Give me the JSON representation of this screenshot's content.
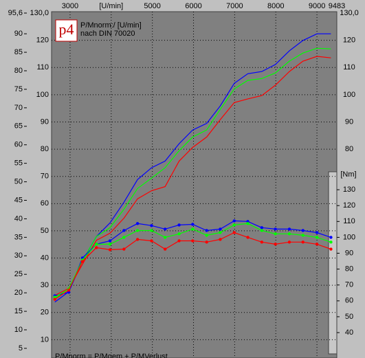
{
  "chart_data": {
    "type": "line",
    "title": "P/Mnorm:/ [U/min]",
    "subtitle": "nach DIN 70020",
    "logo": "p4",
    "footnote": "P/Mnorm = P/Mgem + P/MVerlust",
    "y2_label": "[Nm]",
    "x": [
      2630,
      2970,
      3300,
      3640,
      3970,
      4310,
      4640,
      4980,
      5310,
      5650,
      5980,
      6320,
      6650,
      6990,
      7320,
      7660,
      7990,
      8330,
      8660,
      9000,
      9340
    ],
    "xlim": [
      2550,
      9483
    ],
    "xticks": [
      3000,
      {
        "value": 4000,
        "label": "[U/min]"
      },
      5000,
      6000,
      7000,
      8000,
      9000,
      9483
    ],
    "ylim": [
      3.5,
      95.6
    ],
    "yticks": [
      {
        "value": 95.6,
        "label": "95,6"
      },
      90,
      85,
      80,
      75,
      70,
      65,
      60,
      55,
      50,
      45,
      40,
      35,
      30,
      25,
      20,
      15,
      10,
      5
    ],
    "ps_ylim": [
      4.8,
      130.0
    ],
    "ps_yticks": [
      {
        "value": 130,
        "label": "130,0"
      },
      120,
      110,
      100,
      90,
      80,
      70,
      60,
      50,
      40,
      30,
      20,
      10
    ],
    "y2lim": [
      26.6,
      141.3
    ],
    "y2ticks": [
      130,
      120,
      110,
      100,
      90,
      80,
      70,
      60,
      50,
      40
    ],
    "grid": true,
    "series": [
      {
        "color": "#0000ff",
        "axis": "y",
        "markers": false,
        "values": [
          17.5,
          20.3,
          28.6,
          35.2,
          38.9,
          44.5,
          50.6,
          53.8,
          55.6,
          60.3,
          64.0,
          65.8,
          70.5,
          76.6,
          79.2,
          79.8,
          81.7,
          85.4,
          88.2,
          90.0,
          90.0
        ]
      },
      {
        "color": "#00ff00",
        "axis": "y",
        "markers": false,
        "values": [
          18.4,
          21.2,
          28.6,
          35.2,
          37.6,
          42.6,
          48.2,
          51.0,
          53.8,
          58.4,
          62.1,
          64.0,
          69.6,
          75.1,
          77.4,
          77.9,
          79.4,
          82.6,
          84.8,
          86.1,
          85.9
        ]
      },
      {
        "color": "#ff0000",
        "axis": "y",
        "markers": false,
        "values": [
          19.3,
          21.2,
          27.7,
          34.2,
          36.1,
          40.2,
          45.4,
          47.6,
          48.7,
          55.6,
          59.3,
          62.1,
          66.8,
          71.4,
          72.4,
          73.3,
          76.1,
          79.8,
          82.6,
          83.9,
          83.5
        ]
      },
      {
        "color": "#0000ff",
        "axis": "y2",
        "markers": true,
        "values": [
          63.2,
          65.4,
          87.0,
          95.7,
          97.8,
          104.3,
          108.7,
          107.4,
          105.2,
          107.8,
          108.2,
          104.3,
          105.2,
          110.4,
          110.0,
          106.1,
          105.2,
          105.2,
          104.3,
          103.0,
          100.0
        ]
      },
      {
        "color": "#00ff00",
        "axis": "y2",
        "markers": true,
        "values": [
          62.3,
          67.5,
          85.7,
          95.7,
          95.7,
          100.0,
          104.3,
          104.3,
          100.0,
          102.2,
          105.2,
          101.3,
          103.0,
          107.8,
          108.7,
          104.3,
          102.2,
          102.2,
          101.3,
          100.0,
          97.0
        ]
      },
      {
        "color": "#ff0000",
        "axis": "y2",
        "markers": true,
        "values": [
          61.0,
          66.7,
          84.8,
          93.5,
          92.2,
          92.6,
          98.7,
          97.8,
          92.6,
          97.8,
          97.8,
          97.0,
          98.7,
          103.0,
          100.0,
          97.0,
          95.7,
          97.0,
          97.0,
          95.7,
          92.6
        ]
      }
    ]
  }
}
